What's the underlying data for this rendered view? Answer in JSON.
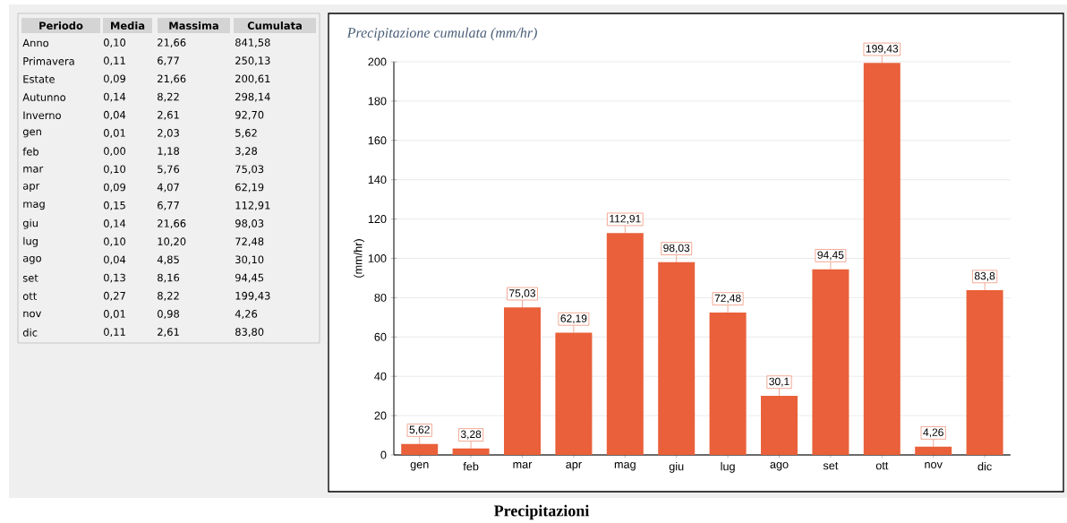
{
  "chart_data": [
    {
      "type": "other",
      "annotations": [
        "Periodo",
        "Media",
        "Massima",
        "Cumulata",
        "Anno",
        "0,10",
        "21,66",
        "841,58",
        "Primavera",
        "0,11",
        "6,77",
        "250,13",
        "Estate",
        "0,09",
        "21,66",
        "200,61",
        "Autunno",
        "0,14",
        "8,22",
        "298,14",
        "Inverno",
        "0,04",
        "2,61",
        "92,70",
        "gen",
        "0,01",
        "2,03",
        "5,62",
        "feb",
        "0,00",
        "1,18",
        "3,28",
        "mar",
        "0,10",
        "5,76",
        "75,03",
        "apr",
        "0,09",
        "4,07",
        "62,19",
        "mag",
        "0,15",
        "6,77",
        "112,91",
        "giu",
        "0,14",
        "21,66",
        "98,03",
        "lug",
        "0,10",
        "10,20",
        "72,48",
        "ago",
        "0,04",
        "4,85",
        "30,10",
        "set",
        "0,13",
        "8,16",
        "94,45",
        "ott",
        "0,27",
        "8,22",
        "199,43",
        "nov",
        "0,01",
        "0,98",
        "4,26",
        "dic",
        "0,11",
        "2,61",
        "83,80"
      ]
    },
    {
      "type": "bar",
      "title": "Precipitazione cumulata (mm/hr)",
      "ylabel": "(mm/hr)",
      "categories": [
        "gen",
        "feb",
        "mar",
        "apr",
        "mag",
        "giu",
        "lug",
        "ago",
        "set",
        "ott",
        "nov",
        "dic"
      ],
      "values": [
        5.62,
        3.28,
        75.03,
        62.19,
        112.91,
        98.03,
        72.48,
        30.1,
        94.45,
        199.43,
        4.26,
        83.8
      ],
      "value_labels": [
        "5,62",
        "3,28",
        "75,03",
        "62,19",
        "112,91",
        "98,03",
        "72,48",
        "30,1",
        "94,45",
        "199,43",
        "4,26",
        "83,8"
      ],
      "color": "#e9603a",
      "ylim": [
        0,
        200
      ],
      "yticks": [
        0,
        20,
        40,
        60,
        80,
        100,
        120,
        140,
        160,
        180,
        200
      ],
      "grid": "y",
      "annotations": [
        "Precipitazioni"
      ]
    }
  ]
}
